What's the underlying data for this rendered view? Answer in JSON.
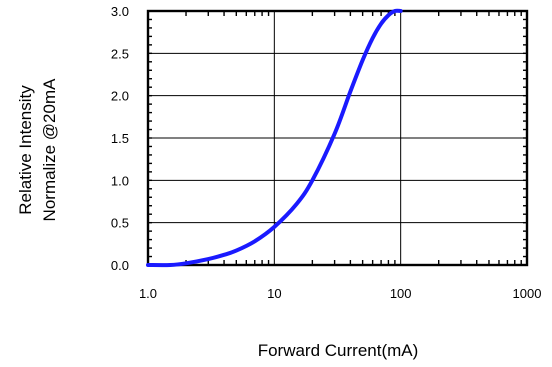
{
  "chart_data": {
    "type": "line",
    "title": "",
    "xlabel": "Forward Current(mA)",
    "ylabel_lines": [
      "Relative Intensity",
      "Normalize @20mA"
    ],
    "x_scale": "log",
    "xlim": [
      1,
      1000
    ],
    "ylim": [
      0,
      3.0
    ],
    "x_ticks": [
      1,
      10,
      100,
      1000
    ],
    "x_tick_labels": [
      "1.0",
      "10",
      "100",
      "1000"
    ],
    "y_ticks": [
      0,
      0.5,
      1.0,
      1.5,
      2.0,
      2.5,
      3.0
    ],
    "y_tick_labels": [
      "0.0",
      "0.5",
      "1.0",
      "1.5",
      "2.0",
      "2.5",
      "3.0"
    ],
    "grid": true,
    "series": [
      {
        "color": "#1a1aff",
        "x": [
          1.0,
          1.5,
          2,
          3,
          4,
          5,
          7,
          10,
          15,
          20,
          30,
          40,
          50,
          60,
          70,
          80,
          90,
          100
        ],
        "y": [
          0.0,
          0.0,
          0.02,
          0.07,
          0.12,
          0.17,
          0.28,
          0.45,
          0.72,
          1.0,
          1.55,
          2.05,
          2.42,
          2.68,
          2.85,
          2.95,
          3.0,
          3.0
        ]
      }
    ]
  }
}
